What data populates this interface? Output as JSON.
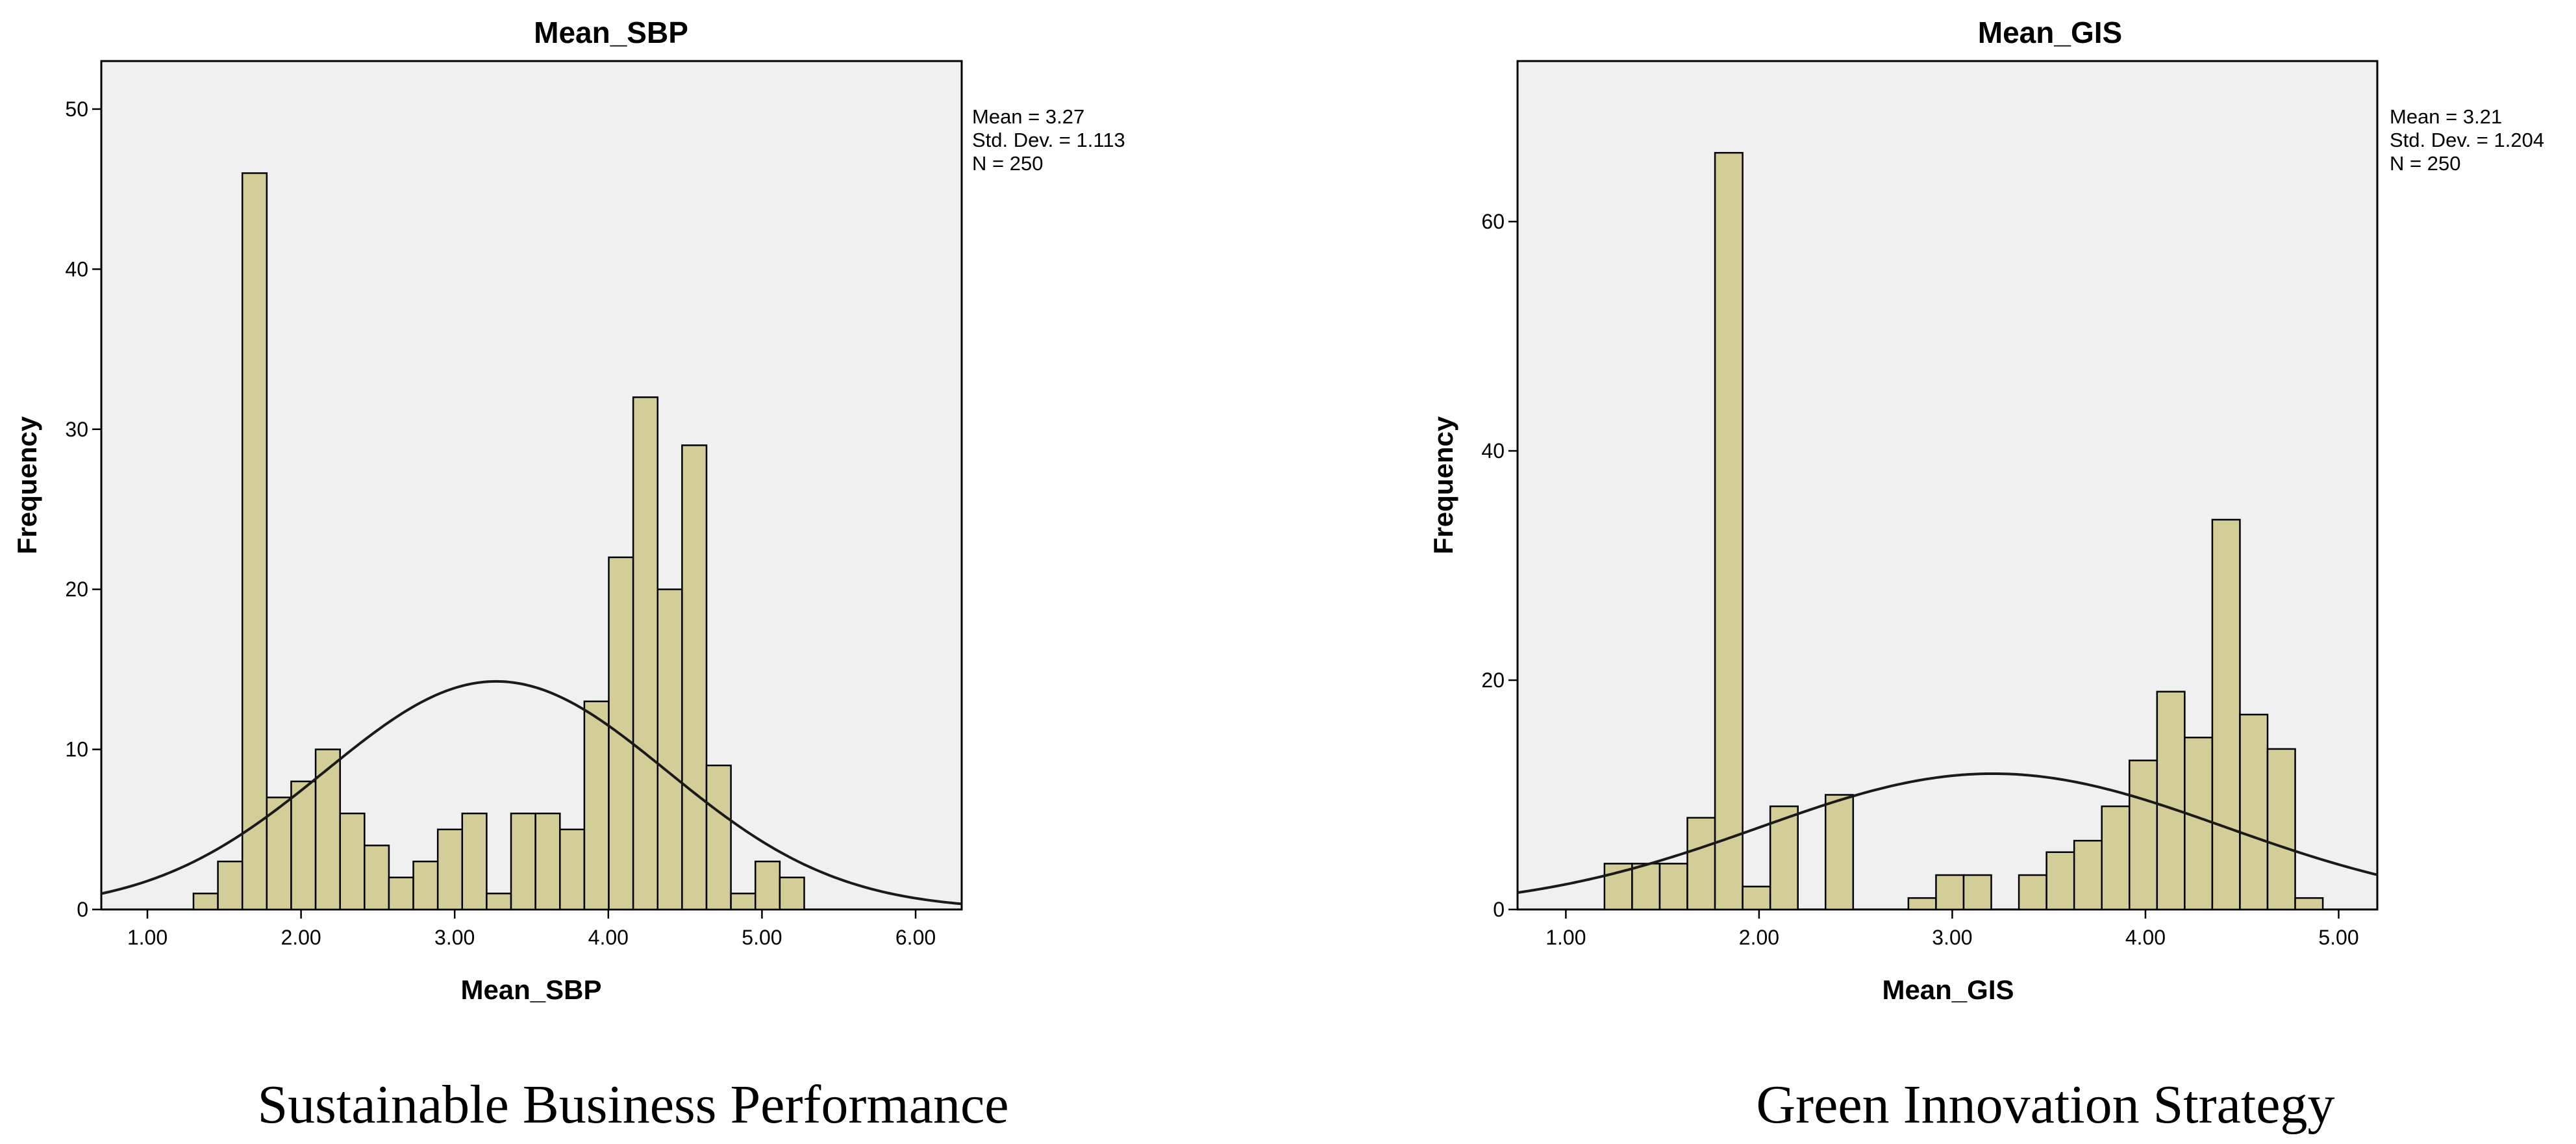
{
  "chart_data": [
    {
      "type": "bar",
      "title": "Mean_SBP",
      "xlabel": "Mean_SBP",
      "ylabel": "Frequency",
      "caption": "Sustainable Business Performance",
      "stats": [
        "Mean = 3.27",
        "Std. Dev. = 1.113",
        "N = 250"
      ],
      "mean": 3.27,
      "sd": 1.113,
      "n": 250,
      "xlim": [
        0.7,
        6.3
      ],
      "ylim": [
        0,
        53
      ],
      "xticks": [
        1,
        2,
        3,
        4,
        5,
        6
      ],
      "xtick_labels": [
        "1.00",
        "2.00",
        "3.00",
        "4.00",
        "5.00",
        "6.00"
      ],
      "yticks": [
        0,
        10,
        20,
        30,
        40,
        50
      ],
      "ytick_labels": [
        "0",
        "10",
        "20",
        "30",
        "40",
        "50"
      ],
      "bin_start": 1.3,
      "bin_width": 0.159,
      "values": [
        1,
        3,
        46,
        7,
        8,
        10,
        6,
        4,
        2,
        3,
        5,
        6,
        1,
        6,
        6,
        5,
        13,
        22,
        32,
        20,
        29,
        9,
        1,
        3,
        2
      ],
      "bar_color": "#d3ce97",
      "grid": false
    },
    {
      "type": "bar",
      "title": "Mean_GIS",
      "xlabel": "Mean_GIS",
      "ylabel": "Frequency",
      "caption": "Green Innovation Strategy",
      "stats": [
        "Mean = 3.21",
        "Std. Dev. = 1.204",
        "N = 250"
      ],
      "mean": 3.21,
      "sd": 1.204,
      "n": 250,
      "xlim": [
        0.75,
        5.2
      ],
      "ylim": [
        0,
        74
      ],
      "xticks": [
        1,
        2,
        3,
        4,
        5
      ],
      "xtick_labels": [
        "1.00",
        "2.00",
        "3.00",
        "4.00",
        "5.00"
      ],
      "yticks": [
        0,
        20,
        40,
        60
      ],
      "ytick_labels": [
        "0",
        "20",
        "40",
        "60"
      ],
      "bin_start": 1.2,
      "bin_width": 0.143,
      "values": [
        4,
        4,
        4,
        8,
        66,
        2,
        9,
        0,
        10,
        0,
        0,
        1,
        3,
        3,
        0,
        3,
        5,
        6,
        9,
        13,
        19,
        15,
        34,
        17,
        14,
        1
      ],
      "bar_color": "#d3ce97",
      "grid": false
    }
  ]
}
